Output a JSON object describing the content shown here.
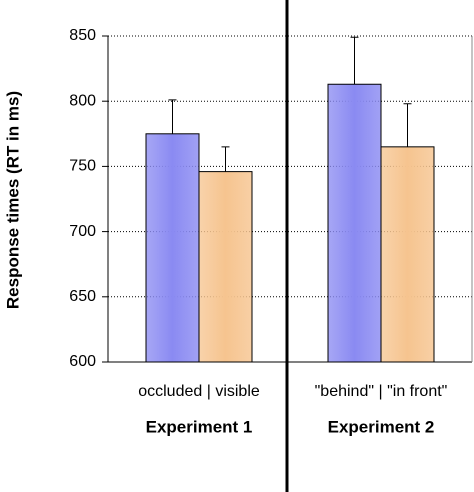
{
  "chart_data": {
    "type": "bar",
    "y_label": "Response times (RT in ms)",
    "categories": [
      "Experiment 1",
      "Experiment 2"
    ],
    "sublabels": [
      "occluded | visible",
      "\"behind\" | \"in front\""
    ],
    "series": [
      {
        "color": "#8a8af2",
        "values": [
          775,
          813
        ],
        "errors": [
          26,
          36
        ]
      },
      {
        "color": "#f6c48f",
        "values": [
          746,
          765
        ],
        "errors": [
          19,
          33
        ]
      }
    ],
    "ylim": [
      600,
      850
    ],
    "yticks": [
      600,
      650,
      700,
      750,
      800,
      850
    ],
    "grid": true
  }
}
